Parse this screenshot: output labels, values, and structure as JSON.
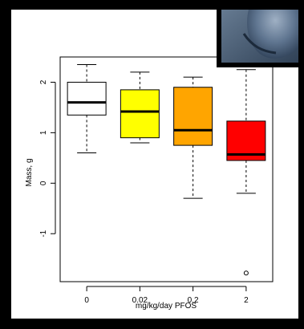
{
  "chart_data": {
    "type": "boxplot",
    "xlabel": "mg/kg/day PFOS",
    "ylabel": "Mass, g",
    "categories": [
      "0",
      "0.02",
      "0.2",
      "2"
    ],
    "yticks": [
      -1,
      0,
      1,
      2
    ],
    "ylim": [
      -1.95,
      2.5
    ],
    "grid": false,
    "legend": "none",
    "series": [
      {
        "category": "0",
        "min": 0.6,
        "q1": 1.35,
        "median": 1.6,
        "q3": 2.0,
        "max": 2.35,
        "outliers": [],
        "color": "#ffffff"
      },
      {
        "category": "0.02",
        "min": 0.8,
        "q1": 0.9,
        "median": 1.42,
        "q3": 1.85,
        "max": 2.2,
        "outliers": [],
        "color": "#ffff00"
      },
      {
        "category": "0.2",
        "min": -0.3,
        "q1": 0.75,
        "median": 1.05,
        "q3": 1.9,
        "max": 2.1,
        "outliers": [],
        "color": "#ffa500"
      },
      {
        "category": "2",
        "min": -0.2,
        "q1": 0.45,
        "median": 0.57,
        "q3": 1.23,
        "max": 2.25,
        "outliers": [
          -1.78
        ],
        "color": "#ff0000"
      }
    ]
  },
  "photo_overlay": {
    "description_icon": "gloved-hand-photo"
  }
}
